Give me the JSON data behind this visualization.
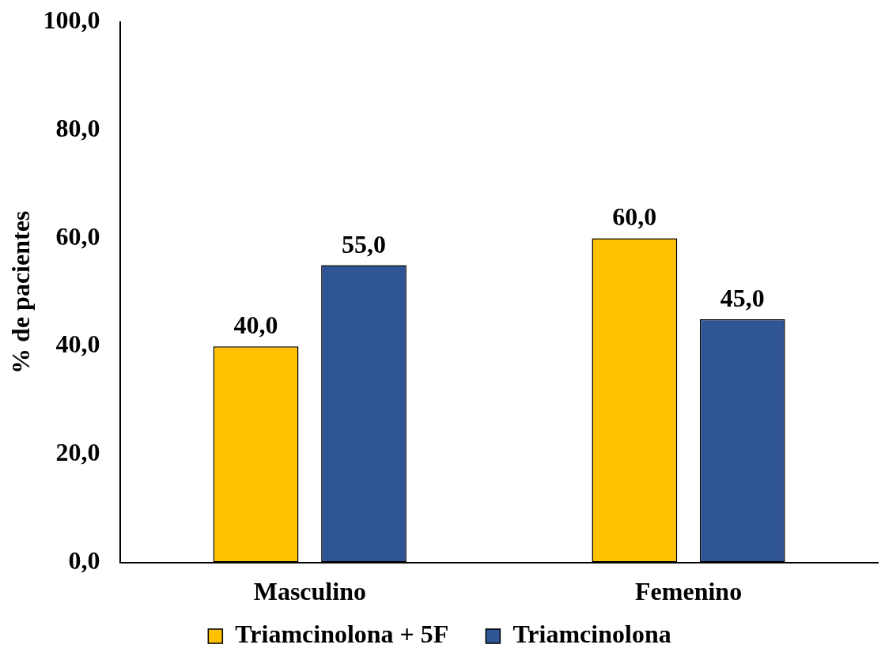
{
  "chart_data": {
    "type": "bar",
    "ylabel": "% de pacientes",
    "categories": [
      "Masculino",
      "Femenino"
    ],
    "series": [
      {
        "name": "Triamcinolona + 5F",
        "color": "#ffc000",
        "values": [
          40,
          60
        ],
        "value_labels": [
          "40,0",
          "60,0"
        ]
      },
      {
        "name": "Triamcinolona",
        "color": "#2f5597",
        "values": [
          55,
          45
        ],
        "value_labels": [
          "55,0",
          "45,0"
        ]
      }
    ],
    "ylim": [
      0,
      100
    ],
    "yticks": [
      {
        "value": 0,
        "label": "0,0"
      },
      {
        "value": 20,
        "label": "20,0"
      },
      {
        "value": 40,
        "label": "40,0"
      },
      {
        "value": 60,
        "label": "60,0"
      },
      {
        "value": 80,
        "label": "80,0"
      },
      {
        "value": 100,
        "label": "100,0"
      }
    ],
    "grid": false,
    "legend": "bottom"
  }
}
